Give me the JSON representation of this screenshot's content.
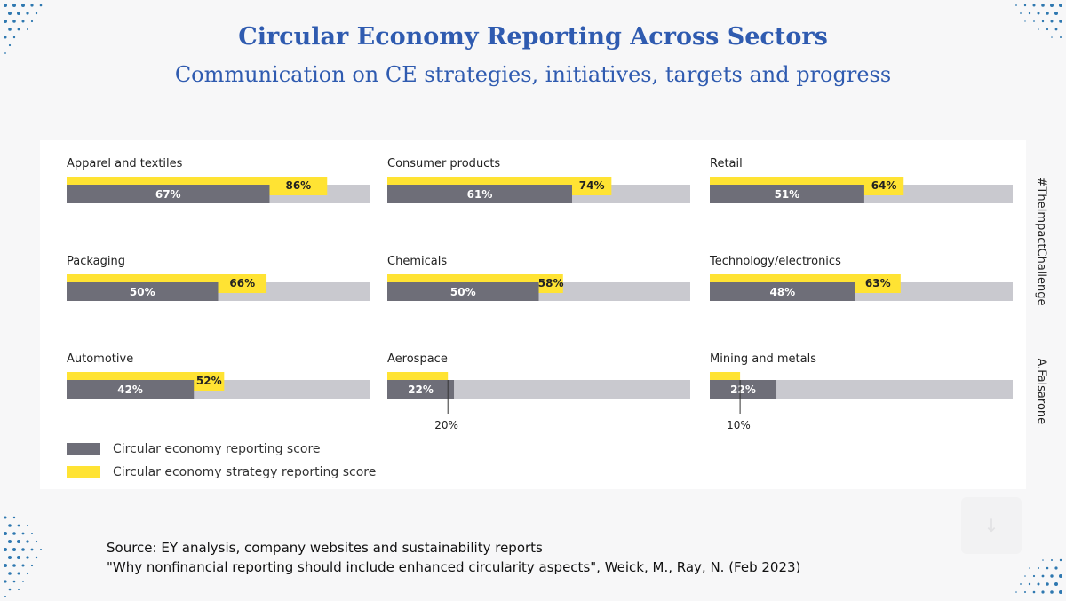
{
  "title": "Circular Economy Reporting Across Sectors",
  "subtitle": "Communication on CE strategies, initiatives, targets and progress",
  "side_labels": {
    "hashtag": "#TheImpactChallenge",
    "author": "A.Falsarone"
  },
  "source": {
    "line1": "Source: EY analysis, company websites and sustainability reports",
    "line2": "\"Why nonfinancial reporting should include enhanced circularity aspects\", Weick, M., Ray, N. (Feb 2023)"
  },
  "legend": {
    "reporting": "Circular economy reporting score",
    "strategy": "Circular economy strategy reporting score"
  },
  "colors": {
    "reporting": "#6e6e78",
    "strategy": "#ffe333",
    "track": "#c9c9cf",
    "title": "#2f5bb0",
    "dots": "#2e78b0"
  },
  "icons": {
    "scroll": "chevron-down-icon"
  },
  "chart_data": {
    "type": "bar",
    "orientation": "horizontal",
    "xlim": [
      0,
      100
    ],
    "series": [
      {
        "name": "Circular economy reporting score",
        "values": [
          67,
          61,
          51,
          50,
          50,
          48,
          42,
          22,
          22
        ]
      },
      {
        "name": "Circular economy strategy reporting score",
        "values": [
          86,
          74,
          64,
          66,
          58,
          63,
          52,
          20,
          10
        ]
      }
    ],
    "categories": [
      "Apparel and textiles",
      "Consumer products",
      "Retail",
      "Packaging",
      "Chemicals",
      "Technology/electronics",
      "Automotive",
      "Aerospace",
      "Mining and metals"
    ],
    "reporting_labels": [
      "67%",
      "61%",
      "51%",
      "50%",
      "50%",
      "48%",
      "42%",
      "22%",
      "22%"
    ],
    "strategy_labels": [
      "86%",
      "74%",
      "64%",
      "66%",
      "58%",
      "63%",
      "52%",
      "20%",
      "10%"
    ],
    "strategy_label_below": [
      false,
      false,
      false,
      false,
      false,
      false,
      false,
      true,
      true
    ]
  }
}
